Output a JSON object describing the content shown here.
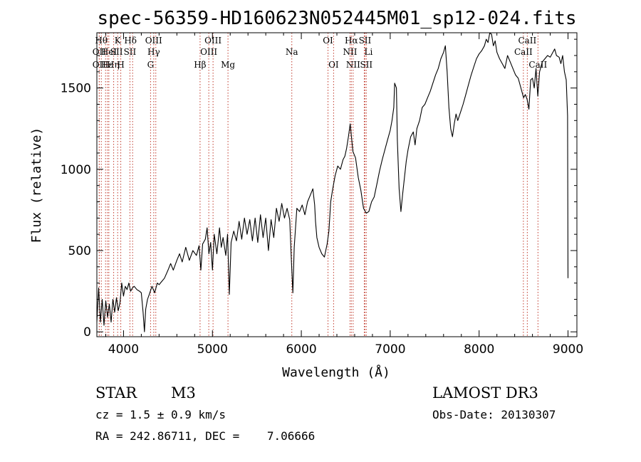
{
  "chart_data": {
    "type": "line",
    "title": "spec-56359-HD160623N052445M01_sp12-024.fits",
    "xlabel": "Wavelength (Å)",
    "ylabel": "Flux (relative)",
    "xlim": [
      3700,
      9100
    ],
    "ylim": [
      -30,
      1840
    ],
    "xticks": [
      4000,
      5000,
      6000,
      7000,
      8000,
      9000
    ],
    "yticks": [
      0,
      500,
      1000,
      1500
    ],
    "series": [
      {
        "name": "flux",
        "points": [
          [
            3700,
            60
          ],
          [
            3720,
            270
          ],
          [
            3740,
            60
          ],
          [
            3760,
            200
          ],
          [
            3780,
            40
          ],
          [
            3800,
            190
          ],
          [
            3820,
            90
          ],
          [
            3840,
            170
          ],
          [
            3860,
            60
          ],
          [
            3880,
            200
          ],
          [
            3900,
            120
          ],
          [
            3920,
            210
          ],
          [
            3940,
            130
          ],
          [
            3960,
            180
          ],
          [
            3980,
            300
          ],
          [
            4000,
            220
          ],
          [
            4020,
            280
          ],
          [
            4040,
            260
          ],
          [
            4060,
            300
          ],
          [
            4080,
            250
          ],
          [
            4100,
            270
          ],
          [
            4120,
            280
          ],
          [
            4150,
            260
          ],
          [
            4180,
            250
          ],
          [
            4200,
            240
          ],
          [
            4220,
            120
          ],
          [
            4235,
            0
          ],
          [
            4250,
            140
          ],
          [
            4270,
            200
          ],
          [
            4290,
            230
          ],
          [
            4320,
            280
          ],
          [
            4350,
            240
          ],
          [
            4380,
            300
          ],
          [
            4400,
            290
          ],
          [
            4430,
            310
          ],
          [
            4460,
            330
          ],
          [
            4500,
            380
          ],
          [
            4530,
            420
          ],
          [
            4560,
            380
          ],
          [
            4600,
            440
          ],
          [
            4630,
            480
          ],
          [
            4660,
            430
          ],
          [
            4700,
            520
          ],
          [
            4740,
            440
          ],
          [
            4780,
            500
          ],
          [
            4820,
            470
          ],
          [
            4850,
            530
          ],
          [
            4870,
            380
          ],
          [
            4890,
            540
          ],
          [
            4920,
            570
          ],
          [
            4940,
            640
          ],
          [
            4960,
            480
          ],
          [
            4980,
            550
          ],
          [
            5000,
            380
          ],
          [
            5020,
            600
          ],
          [
            5050,
            480
          ],
          [
            5080,
            640
          ],
          [
            5100,
            520
          ],
          [
            5120,
            580
          ],
          [
            5150,
            470
          ],
          [
            5170,
            600
          ],
          [
            5190,
            230
          ],
          [
            5210,
            550
          ],
          [
            5240,
            620
          ],
          [
            5270,
            560
          ],
          [
            5300,
            680
          ],
          [
            5330,
            570
          ],
          [
            5360,
            700
          ],
          [
            5390,
            600
          ],
          [
            5420,
            690
          ],
          [
            5450,
            560
          ],
          [
            5480,
            700
          ],
          [
            5510,
            550
          ],
          [
            5540,
            720
          ],
          [
            5570,
            580
          ],
          [
            5600,
            700
          ],
          [
            5630,
            500
          ],
          [
            5660,
            690
          ],
          [
            5690,
            580
          ],
          [
            5720,
            760
          ],
          [
            5750,
            680
          ],
          [
            5780,
            790
          ],
          [
            5810,
            700
          ],
          [
            5840,
            760
          ],
          [
            5870,
            690
          ],
          [
            5890,
            420
          ],
          [
            5905,
            240
          ],
          [
            5920,
            520
          ],
          [
            5950,
            760
          ],
          [
            5980,
            740
          ],
          [
            6010,
            780
          ],
          [
            6040,
            720
          ],
          [
            6070,
            800
          ],
          [
            6100,
            840
          ],
          [
            6130,
            880
          ],
          [
            6150,
            780
          ],
          [
            6160,
            680
          ],
          [
            6175,
            580
          ],
          [
            6200,
            520
          ],
          [
            6230,
            480
          ],
          [
            6260,
            460
          ],
          [
            6290,
            540
          ],
          [
            6310,
            620
          ],
          [
            6330,
            800
          ],
          [
            6350,
            870
          ],
          [
            6380,
            960
          ],
          [
            6410,
            1020
          ],
          [
            6440,
            1000
          ],
          [
            6470,
            1060
          ],
          [
            6490,
            1080
          ],
          [
            6510,
            1130
          ],
          [
            6530,
            1200
          ],
          [
            6550,
            1280
          ],
          [
            6560,
            1220
          ],
          [
            6580,
            1110
          ],
          [
            6610,
            1070
          ],
          [
            6640,
            950
          ],
          [
            6670,
            870
          ],
          [
            6700,
            760
          ],
          [
            6730,
            730
          ],
          [
            6760,
            740
          ],
          [
            6790,
            800
          ],
          [
            6820,
            830
          ],
          [
            6850,
            910
          ],
          [
            6880,
            990
          ],
          [
            6910,
            1060
          ],
          [
            6940,
            1120
          ],
          [
            6970,
            1180
          ],
          [
            7000,
            1240
          ],
          [
            7020,
            1300
          ],
          [
            7040,
            1380
          ],
          [
            7050,
            1530
          ],
          [
            7070,
            1500
          ],
          [
            7080,
            1180
          ],
          [
            7100,
            880
          ],
          [
            7120,
            740
          ],
          [
            7140,
            850
          ],
          [
            7160,
            950
          ],
          [
            7180,
            1050
          ],
          [
            7200,
            1120
          ],
          [
            7230,
            1200
          ],
          [
            7260,
            1230
          ],
          [
            7280,
            1150
          ],
          [
            7300,
            1250
          ],
          [
            7330,
            1300
          ],
          [
            7360,
            1380
          ],
          [
            7390,
            1400
          ],
          [
            7420,
            1440
          ],
          [
            7450,
            1480
          ],
          [
            7480,
            1530
          ],
          [
            7510,
            1580
          ],
          [
            7540,
            1620
          ],
          [
            7570,
            1680
          ],
          [
            7600,
            1720
          ],
          [
            7620,
            1760
          ],
          [
            7640,
            1600
          ],
          [
            7660,
            1380
          ],
          [
            7680,
            1250
          ],
          [
            7700,
            1200
          ],
          [
            7720,
            1280
          ],
          [
            7740,
            1340
          ],
          [
            7760,
            1300
          ],
          [
            7790,
            1350
          ],
          [
            7820,
            1400
          ],
          [
            7850,
            1460
          ],
          [
            7880,
            1520
          ],
          [
            7910,
            1580
          ],
          [
            7940,
            1630
          ],
          [
            7970,
            1680
          ],
          [
            8000,
            1710
          ],
          [
            8030,
            1730
          ],
          [
            8060,
            1760
          ],
          [
            8080,
            1800
          ],
          [
            8100,
            1780
          ],
          [
            8120,
            1840
          ],
          [
            8140,
            1830
          ],
          [
            8160,
            1760
          ],
          [
            8180,
            1790
          ],
          [
            8200,
            1720
          ],
          [
            8230,
            1680
          ],
          [
            8260,
            1650
          ],
          [
            8290,
            1620
          ],
          [
            8320,
            1700
          ],
          [
            8350,
            1660
          ],
          [
            8380,
            1620
          ],
          [
            8410,
            1580
          ],
          [
            8440,
            1560
          ],
          [
            8470,
            1500
          ],
          [
            8500,
            1440
          ],
          [
            8520,
            1460
          ],
          [
            8540,
            1430
          ],
          [
            8560,
            1370
          ],
          [
            8580,
            1550
          ],
          [
            8600,
            1560
          ],
          [
            8620,
            1500
          ],
          [
            8640,
            1620
          ],
          [
            8660,
            1450
          ],
          [
            8680,
            1600
          ],
          [
            8710,
            1660
          ],
          [
            8740,
            1680
          ],
          [
            8770,
            1700
          ],
          [
            8800,
            1690
          ],
          [
            8830,
            1720
          ],
          [
            8850,
            1740
          ],
          [
            8870,
            1700
          ],
          [
            8900,
            1690
          ],
          [
            8920,
            1650
          ],
          [
            8940,
            1700
          ],
          [
            8960,
            1600
          ],
          [
            8980,
            1550
          ],
          [
            8995,
            1330
          ],
          [
            9000,
            330
          ]
        ]
      }
    ],
    "lines": [
      {
        "wl": 3750,
        "label": "Hθ",
        "row": 0,
        "dx": 0
      },
      {
        "wl": 3727,
        "label": "OII",
        "row": 1,
        "dx": 0
      },
      {
        "wl": 3727,
        "label": "OII",
        "row": 2,
        "dx": 0
      },
      {
        "wl": 3798,
        "label": "Hε",
        "row": 2,
        "dx": 2
      },
      {
        "wl": 3820,
        "label": "HeI",
        "row": 1,
        "dx": 2
      },
      {
        "wl": 3835,
        "label": "Hη",
        "row": 2,
        "dx": 6
      },
      {
        "wl": 3889,
        "label": "SII",
        "row": 1,
        "dx": 4
      },
      {
        "wl": 3934,
        "label": "K",
        "row": 0,
        "dx": 0
      },
      {
        "wl": 3969,
        "label": "H",
        "row": 2,
        "dx": 0
      },
      {
        "wl": 4102,
        "label": "Hδ",
        "row": 0,
        "dx": -3
      },
      {
        "wl": 4072,
        "label": "SII",
        "row": 1,
        "dx": 0
      },
      {
        "wl": 4340,
        "label": "Hγ",
        "row": 1,
        "dx": 0
      },
      {
        "wl": 4363,
        "label": "OIII",
        "row": 0,
        "dx": -3
      },
      {
        "wl": 4304,
        "label": "G",
        "row": 2,
        "dx": 0
      },
      {
        "wl": 4861,
        "label": "Hβ",
        "row": 2,
        "dx": 0
      },
      {
        "wl": 4959,
        "label": "OIII",
        "row": 1,
        "dx": 0
      },
      {
        "wl": 5007,
        "label": "OIII",
        "row": 0,
        "dx": 0
      },
      {
        "wl": 5175,
        "label": "Mg",
        "row": 2,
        "dx": 0
      },
      {
        "wl": 5893,
        "label": "Na",
        "row": 1,
        "dx": 0
      },
      {
        "wl": 6300,
        "label": "OI",
        "row": 0,
        "dx": 0
      },
      {
        "wl": 6363,
        "label": "OI",
        "row": 2,
        "dx": 0
      },
      {
        "wl": 6548,
        "label": "NII",
        "row": 1,
        "dx": 0
      },
      {
        "wl": 6563,
        "label": "Hα",
        "row": 0,
        "dx": 0
      },
      {
        "wl": 6583,
        "label": "NII",
        "row": 2,
        "dx": 0
      },
      {
        "wl": 6708,
        "label": "Li",
        "row": 1,
        "dx": 6
      },
      {
        "wl": 6716,
        "label": "SII",
        "row": 0,
        "dx": 0
      },
      {
        "wl": 6731,
        "label": "SII",
        "row": 2,
        "dx": 0
      },
      {
        "wl": 8498,
        "label": "CaII",
        "row": 1,
        "dx": 0
      },
      {
        "wl": 8542,
        "label": "CaII",
        "row": 0,
        "dx": 0
      },
      {
        "wl": 8662,
        "label": "CaII",
        "row": 2,
        "dx": 0
      }
    ]
  },
  "info": {
    "object_class": "STAR",
    "subclass": "M3",
    "survey": "LAMOST DR3",
    "redshift": "cz = 1.5 ± 0.9 km/s",
    "obs_date": "Obs-Date: 20130307",
    "coords": "RA = 242.86711, DEC =    7.06666"
  }
}
